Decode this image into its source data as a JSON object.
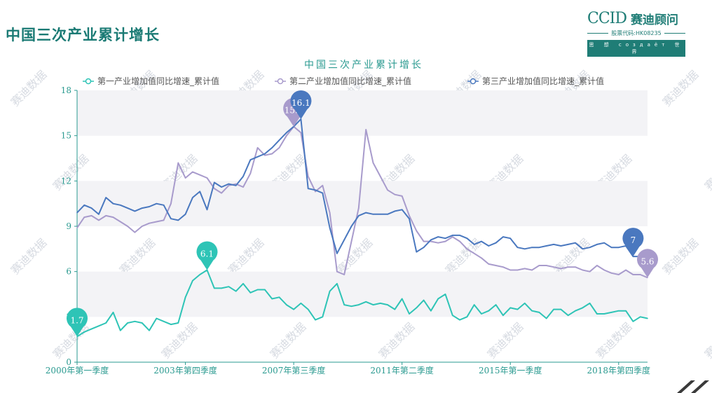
{
  "slide": {
    "title": "中国三次产业累计增长",
    "logo_mark": "CCID",
    "logo_name": "赛迪顾问",
    "logo_code": "股票代码:HK08235",
    "logo_slogan": "思 想 создаёт 世 界"
  },
  "colors": {
    "accent": "#1f7d76",
    "primary": "#2ec4b6",
    "secondary": "#a89bcc",
    "tertiary": "#4a78bf",
    "watermark": "#d7dbe2"
  },
  "chart_data": {
    "type": "line",
    "title": "中国三次产业累计增长",
    "x_tick_labels": [
      "2000年第一季度",
      "2003年第四季度",
      "2007年第三季度",
      "2011年第二季度",
      "2015年第一季度",
      "2018年第四季度"
    ],
    "x_tick_quarters": [
      0,
      15,
      30,
      45,
      60,
      75
    ],
    "x_range": [
      "2000年第一季度",
      "2019年第三季度"
    ],
    "ylim": [
      0,
      18
    ],
    "y_ticks": [
      0,
      3,
      6,
      9,
      12,
      15,
      18
    ],
    "grid": "horizontal bands",
    "legend_position": "top",
    "series": [
      {
        "name": "第一产业增加值同比增速_累计值",
        "color": "#2ec4b6",
        "values": [
          1.7,
          2.0,
          2.2,
          2.4,
          2.6,
          3.3,
          2.1,
          2.6,
          2.7,
          2.6,
          2.1,
          2.9,
          2.7,
          2.5,
          2.6,
          4.3,
          5.4,
          5.8,
          6.1,
          4.9,
          4.9,
          5.0,
          4.7,
          5.2,
          4.6,
          4.8,
          4.8,
          4.2,
          4.3,
          3.8,
          3.5,
          3.9,
          3.5,
          2.8,
          3.0,
          4.7,
          5.2,
          3.8,
          3.7,
          3.8,
          4.0,
          3.8,
          3.9,
          3.8,
          3.5,
          4.2,
          3.2,
          3.6,
          4.1,
          3.4,
          4.2,
          4.5,
          3.1,
          2.8,
          3.0,
          3.8,
          3.2,
          3.4,
          3.8,
          3.1,
          3.6,
          3.5,
          3.9,
          3.4,
          3.3,
          2.9,
          3.5,
          3.5,
          3.1,
          3.4,
          3.6,
          3.9,
          3.2,
          3.2,
          3.3,
          3.4,
          3.4,
          2.7,
          3.0,
          2.9
        ]
      },
      {
        "name": "第二产业增加值同比增速_累计值",
        "color": "#a89bcc",
        "values": [
          8.9,
          9.6,
          9.7,
          9.4,
          9.7,
          9.6,
          9.3,
          9.0,
          8.6,
          9.0,
          9.2,
          9.3,
          9.4,
          10.5,
          13.2,
          12.2,
          12.6,
          12.4,
          12.2,
          11.5,
          11.2,
          11.7,
          11.8,
          11.6,
          12.5,
          14.2,
          13.7,
          13.8,
          14.2,
          15.0,
          15.6,
          15.2,
          12.3,
          11.3,
          11.7,
          9.9,
          6.0,
          5.8,
          8.0,
          10.2,
          15.4,
          13.2,
          12.3,
          11.4,
          11.1,
          11.0,
          9.7,
          8.7,
          8.0,
          8.0,
          7.9,
          8.0,
          8.3,
          8.0,
          7.5,
          7.2,
          6.9,
          6.5,
          6.4,
          6.3,
          6.1,
          6.1,
          6.2,
          6.1,
          6.4,
          6.4,
          6.3,
          6.2,
          6.3,
          6.3,
          6.1,
          6.0,
          6.4,
          6.1,
          5.9,
          5.8,
          6.1,
          5.8,
          5.8,
          5.6
        ]
      },
      {
        "name": "第三产业增加值同比增速_累计值",
        "color": "#4a78bf",
        "values": [
          9.9,
          10.4,
          10.2,
          9.8,
          10.9,
          10.5,
          10.4,
          10.2,
          10.0,
          10.2,
          10.3,
          10.5,
          10.4,
          9.5,
          9.4,
          9.8,
          10.9,
          11.3,
          10.1,
          11.9,
          11.6,
          11.8,
          11.7,
          12.3,
          13.4,
          13.6,
          13.8,
          14.2,
          14.7,
          15.2,
          15.6,
          16.1,
          11.5,
          11.4,
          11.2,
          8.9,
          7.2,
          8.1,
          9.0,
          9.7,
          9.9,
          9.8,
          9.8,
          9.8,
          10.0,
          10.1,
          9.5,
          7.3,
          7.6,
          8.1,
          8.3,
          8.2,
          8.4,
          8.4,
          8.2,
          7.8,
          8.0,
          7.7,
          7.9,
          8.3,
          8.2,
          7.6,
          7.5,
          7.6,
          7.6,
          7.7,
          7.8,
          7.7,
          7.8,
          7.9,
          7.5,
          7.6,
          7.8,
          7.9,
          7.6,
          7.6,
          7.7,
          7.0,
          7.0,
          7.0
        ]
      }
    ],
    "annotations": [
      {
        "series": 0,
        "quarter": 0,
        "label": "1.7"
      },
      {
        "series": 0,
        "quarter": 18,
        "label": "6.1"
      },
      {
        "series": 1,
        "quarter": 30,
        "label": "15.6"
      },
      {
        "series": 2,
        "quarter": 31,
        "label": "16.1"
      },
      {
        "series": 2,
        "quarter": 77,
        "label": "7"
      },
      {
        "series": 1,
        "quarter": 79,
        "label": "5.6"
      }
    ],
    "watermark": "赛迪数据"
  }
}
